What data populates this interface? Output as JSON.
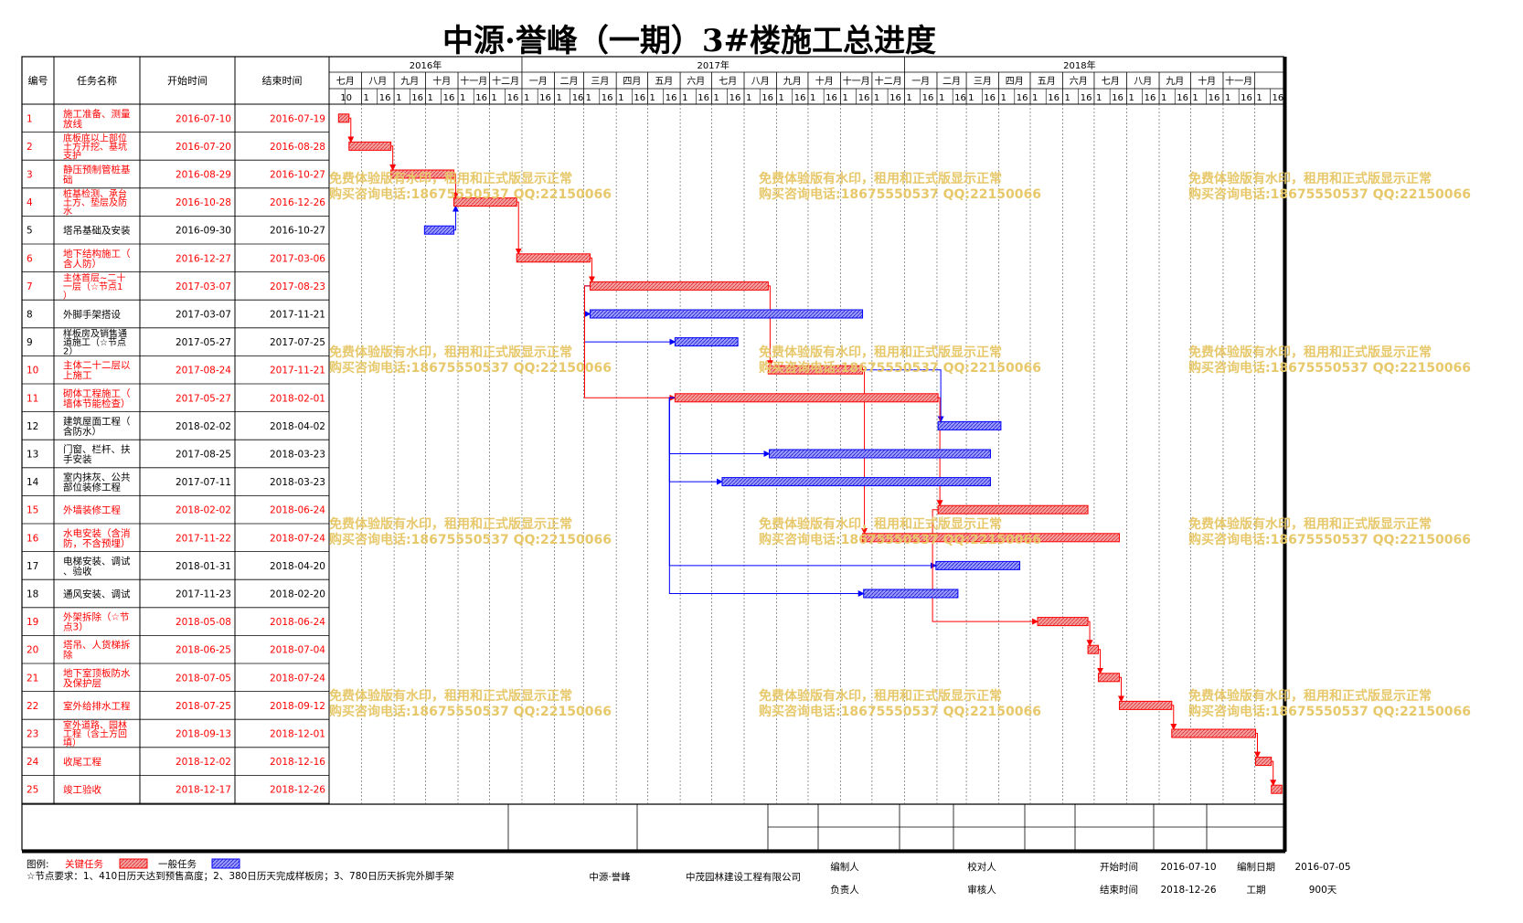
{
  "title": "中源·誉峰（一期）3#楼施工总进度",
  "columns": [
    "编号",
    "任务名称",
    "开始时间",
    "结束时间"
  ],
  "timeline": {
    "years": [
      {
        "label": "2016年",
        "months": 6
      },
      {
        "label": "2017年",
        "months": 12
      },
      {
        "label": "2018年",
        "months": 11
      }
    ],
    "months": [
      "七月",
      "八月",
      "九月",
      "十月",
      "十一月",
      "十二月",
      "一月",
      "二月",
      "三月",
      "四月",
      "五月",
      "六月",
      "七月",
      "八月",
      "九月",
      "十月",
      "十一月",
      "十二月",
      "一月",
      "二月",
      "三月",
      "四月",
      "五月",
      "六月",
      "七月",
      "八月",
      "九月",
      "十月",
      "十一月"
    ],
    "day_ticks": [
      "10",
      "1",
      "16",
      "1",
      "16",
      "1",
      "16",
      "1",
      "16",
      "1",
      "16",
      "1",
      "16",
      "1",
      "16",
      "1",
      "16",
      "1",
      "16",
      "1",
      "16",
      "1",
      "16",
      "1",
      "16",
      "1",
      "16",
      "1",
      "16",
      "1",
      "16",
      "1",
      "16",
      "1",
      "16",
      "1",
      "16",
      "1",
      "16",
      "1",
      "16",
      "1",
      "16",
      "1",
      "16",
      "1",
      "16",
      "1",
      "16",
      "1",
      "16",
      "1",
      "16",
      "1",
      "16",
      "1",
      "16",
      "1",
      "16",
      "1",
      "16"
    ]
  },
  "colors": {
    "critical": "#ff0000",
    "critical_fill": "#f08080",
    "normal": "#0000ff",
    "normal_fill": "#8080ff",
    "watermark": "#e7c86b"
  },
  "chart_data": {
    "type": "gantt",
    "title": "中源·誉峰（一期）3#楼施工总进度",
    "tasks": [
      {
        "id": "1",
        "name": "施工准备、测量放线",
        "start": "2016-07-10",
        "end": "2016-07-19",
        "critical": true
      },
      {
        "id": "2",
        "name": "底板底以上部位土方开挖、基坑支护",
        "start": "2016-07-20",
        "end": "2016-08-28",
        "critical": true
      },
      {
        "id": "3",
        "name": "静压预制管桩基础",
        "start": "2016-08-29",
        "end": "2016-10-27",
        "critical": true
      },
      {
        "id": "4",
        "name": "桩基检测、承台土方、垫层及防水",
        "start": "2016-10-28",
        "end": "2016-12-26",
        "critical": true
      },
      {
        "id": "5",
        "name": "塔吊基础及安装",
        "start": "2016-09-30",
        "end": "2016-10-27",
        "critical": false
      },
      {
        "id": "6",
        "name": "地下结构施工（含人防）",
        "start": "2016-12-27",
        "end": "2017-03-06",
        "critical": true
      },
      {
        "id": "7",
        "name": "主体首层~二十一层（☆节点1）",
        "start": "2017-03-07",
        "end": "2017-08-23",
        "critical": true
      },
      {
        "id": "8",
        "name": "外脚手架搭设",
        "start": "2017-03-07",
        "end": "2017-11-21",
        "critical": false
      },
      {
        "id": "9",
        "name": "样板房及销售通道施工（☆节点2）",
        "start": "2017-05-27",
        "end": "2017-07-25",
        "critical": false
      },
      {
        "id": "10",
        "name": "主体二十二层以上施工",
        "start": "2017-08-24",
        "end": "2017-11-21",
        "critical": true
      },
      {
        "id": "11",
        "name": "砌体工程施工（墙体节能检查）",
        "start": "2017-05-27",
        "end": "2018-02-01",
        "critical": true
      },
      {
        "id": "12",
        "name": "建筑屋面工程（含防水）",
        "start": "2018-02-02",
        "end": "2018-04-02",
        "critical": false
      },
      {
        "id": "13",
        "name": "门窗、栏杆、扶手安装",
        "start": "2017-08-25",
        "end": "2018-03-23",
        "critical": false
      },
      {
        "id": "14",
        "name": "室内抹灰、公共部位装修工程",
        "start": "2017-07-11",
        "end": "2018-03-23",
        "critical": false
      },
      {
        "id": "15",
        "name": "外墙装修工程",
        "start": "2018-02-02",
        "end": "2018-06-24",
        "critical": true
      },
      {
        "id": "16",
        "name": "水电安装（含消防，不含预埋）",
        "start": "2017-11-22",
        "end": "2018-07-24",
        "critical": true
      },
      {
        "id": "17",
        "name": "电梯安装、调试、验收",
        "start": "2018-01-31",
        "end": "2018-04-20",
        "critical": false
      },
      {
        "id": "18",
        "name": "通风安装、调试",
        "start": "2017-11-23",
        "end": "2018-02-20",
        "critical": false
      },
      {
        "id": "19",
        "name": "外架拆除（☆节点3）",
        "start": "2018-05-08",
        "end": "2018-06-24",
        "critical": true
      },
      {
        "id": "20",
        "name": "塔吊、人货梯拆除",
        "start": "2018-06-25",
        "end": "2018-07-04",
        "critical": true
      },
      {
        "id": "21",
        "name": "地下室顶板防水及保护层",
        "start": "2018-07-05",
        "end": "2018-07-24",
        "critical": true
      },
      {
        "id": "22",
        "name": "室外给排水工程",
        "start": "2018-07-25",
        "end": "2018-09-12",
        "critical": true
      },
      {
        "id": "23",
        "name": "室外道路、园林工程（含土方回填）",
        "start": "2018-09-13",
        "end": "2018-12-01",
        "critical": true
      },
      {
        "id": "24",
        "name": "收尾工程",
        "start": "2018-12-02",
        "end": "2018-12-16",
        "critical": true
      },
      {
        "id": "25",
        "name": "竣工验收",
        "start": "2018-12-17",
        "end": "2018-12-26",
        "critical": true
      }
    ],
    "links": [
      {
        "from": "1",
        "to": "2",
        "critical": true
      },
      {
        "from": "2",
        "to": "3",
        "critical": true
      },
      {
        "from": "3",
        "to": "4",
        "critical": true
      },
      {
        "from": "5",
        "to": "4",
        "critical": false
      },
      {
        "from": "4",
        "to": "6",
        "critical": true
      },
      {
        "from": "6",
        "to": "7",
        "critical": true
      },
      {
        "from": "7",
        "to": "8",
        "critical": false
      },
      {
        "from": "7",
        "to": "9",
        "critical": false
      },
      {
        "from": "7",
        "to": "10",
        "critical": true
      },
      {
        "from": "7",
        "to": "11",
        "critical": true
      },
      {
        "from": "10",
        "to": "12",
        "critical": false
      },
      {
        "from": "11",
        "to": "13",
        "critical": false
      },
      {
        "from": "11",
        "to": "14",
        "critical": false
      },
      {
        "from": "11",
        "to": "15",
        "critical": true
      },
      {
        "from": "10",
        "to": "16",
        "critical": true
      },
      {
        "from": "11",
        "to": "17",
        "critical": false
      },
      {
        "from": "11",
        "to": "18",
        "critical": false
      },
      {
        "from": "15",
        "to": "19",
        "critical": true
      },
      {
        "from": "19",
        "to": "20",
        "critical": true
      },
      {
        "from": "20",
        "to": "21",
        "critical": true
      },
      {
        "from": "21",
        "to": "22",
        "critical": true
      },
      {
        "from": "22",
        "to": "23",
        "critical": true
      },
      {
        "from": "23",
        "to": "24",
        "critical": true
      },
      {
        "from": "24",
        "to": "25",
        "critical": true
      }
    ]
  },
  "legend": {
    "label": "图例:",
    "critical_label": "关键任务",
    "normal_label": "一般任务",
    "note": "☆节点要求：1、410日历天达到预售高度；2、380日历天完成样板房；3、780日历天拆完外脚手架"
  },
  "footer": {
    "company_short": "中源·誉峰",
    "company": "中茂园林建设工程有限公司",
    "compiler_label": "编制人",
    "responsible_label": "负责人",
    "checker_label": "校对人",
    "reviewer_label": "审核人",
    "start_label": "开始时间",
    "start_value": "2016-07-10",
    "end_label": "结束时间",
    "end_value": "2018-12-26",
    "date_label": "编制日期",
    "date_value": "2016-07-05",
    "duration_label": "工期",
    "duration_value": "900天"
  },
  "watermark": {
    "line1": "免费体验版有水印，租用和正式版显示正常",
    "line2": "购买咨询电话:18675550537 QQ:22150066"
  }
}
